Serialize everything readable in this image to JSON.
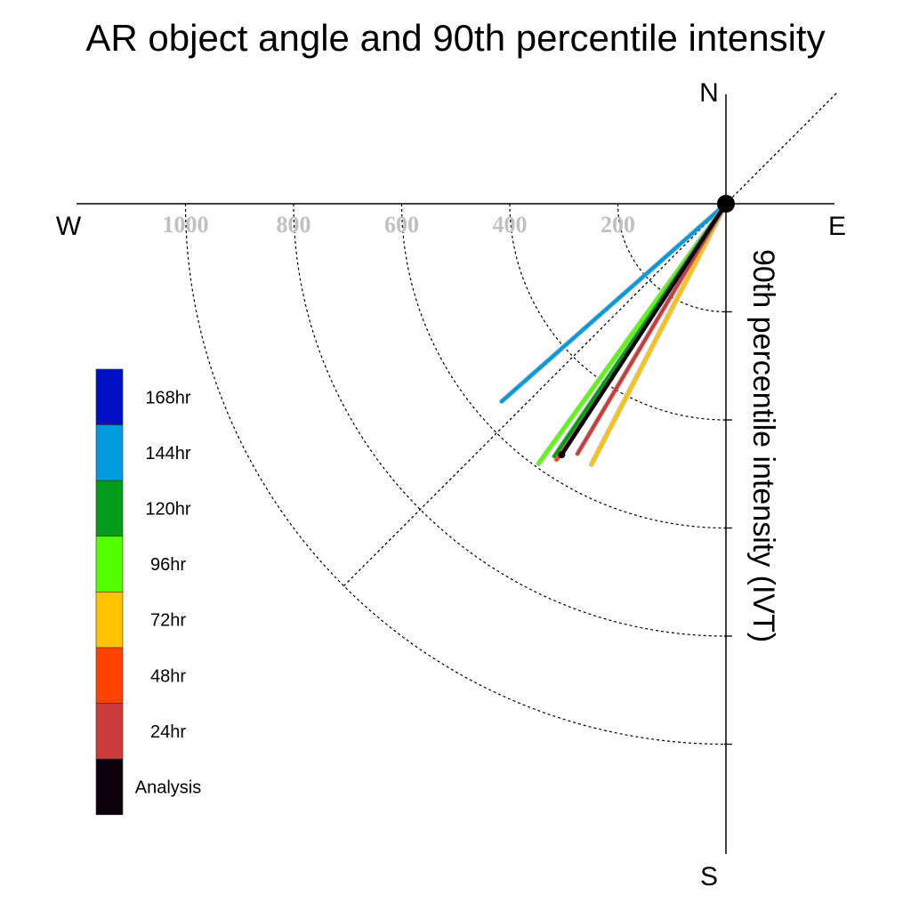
{
  "chart_data": {
    "type": "polar-vector",
    "title": "AR object angle and 90th percentile intensity",
    "axis_label": "90th percentile intensity (IVT)",
    "compass": {
      "north": "N",
      "south": "S",
      "east": "E",
      "west": "W"
    },
    "radial_ticks": [
      200,
      400,
      600,
      800,
      1000
    ],
    "radial_range": [
      0,
      1000
    ],
    "radial_ring_values": [
      200,
      400,
      600,
      800,
      1000
    ],
    "reference_line_deg": 45,
    "series": [
      {
        "name": "168hr",
        "color": "#0010c4",
        "angle_deg": null,
        "intensity": null
      },
      {
        "name": "144hr",
        "color": "#009bde",
        "angle_deg": 48.6,
        "intensity": 553
      },
      {
        "name": "120hr",
        "color": "#009c1a",
        "angle_deg": 34.2,
        "intensity": 565
      },
      {
        "name": "96hr",
        "color": "#54ff00",
        "angle_deg": 35.8,
        "intensity": 593
      },
      {
        "name": "72hr",
        "color": "#ffc300",
        "angle_deg": 27.3,
        "intensity": 543
      },
      {
        "name": "48hr",
        "color": "#ff4200",
        "angle_deg": 33.5,
        "intensity": 568
      },
      {
        "name": "24hr",
        "color": "#cc3b3b",
        "angle_deg": 30.7,
        "intensity": 538
      },
      {
        "name": "Analysis",
        "color": "#0d000d",
        "angle_deg": 33.2,
        "intensity": 555
      }
    ],
    "legend": [
      "168hr",
      "144hr",
      "120hr",
      "96hr",
      "72hr",
      "48hr",
      "24hr",
      "Analysis"
    ],
    "legend_position": "left"
  }
}
